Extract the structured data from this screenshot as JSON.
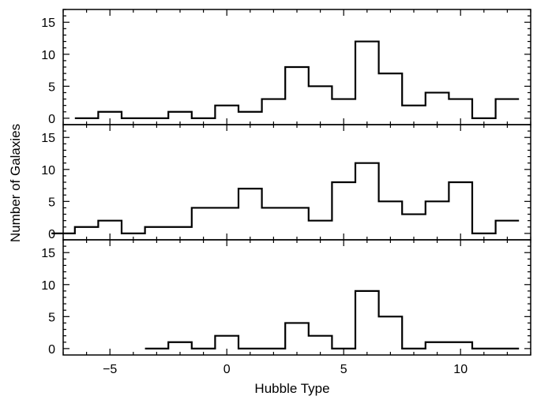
{
  "chart_data": {
    "type": "histogram",
    "xlabel": "Hubble Type",
    "ylabel": "Number of Galaxies",
    "xlim": [
      -7,
      13
    ],
    "ylim": [
      -1,
      17
    ],
    "x_ticks": [
      -5,
      0,
      5,
      10
    ],
    "x_tick_labels": [
      "−5",
      "0",
      "5",
      "10"
    ],
    "y_ticks": [
      0,
      5,
      10,
      15
    ],
    "y_tick_labels": [
      "0",
      "5",
      "10",
      "15"
    ],
    "bin_width": 1,
    "panels": [
      {
        "bin_centers": [
          -6,
          -5,
          -4,
          -3,
          -2,
          -1,
          0,
          1,
          2,
          3,
          4,
          5,
          6,
          7,
          8,
          9,
          10,
          11,
          12
        ],
        "values": [
          0,
          1,
          0,
          0,
          1,
          0,
          2,
          1,
          3,
          8,
          5,
          3,
          12,
          7,
          2,
          4,
          3,
          0,
          3
        ]
      },
      {
        "bin_centers": [
          -7,
          -6,
          -5,
          -4,
          -3,
          -2,
          -1,
          0,
          1,
          2,
          3,
          4,
          5,
          6,
          7,
          8,
          9,
          10,
          11,
          12
        ],
        "values": [
          0,
          1,
          2,
          0,
          1,
          1,
          4,
          4,
          7,
          4,
          4,
          2,
          8,
          11,
          5,
          3,
          5,
          8,
          0,
          2
        ]
      },
      {
        "bin_centers": [
          -3,
          -2,
          -1,
          0,
          1,
          2,
          3,
          4,
          5,
          6,
          7,
          8,
          9,
          10,
          11,
          12
        ],
        "values": [
          0,
          1,
          0,
          2,
          0,
          0,
          4,
          2,
          0,
          9,
          5,
          0,
          1,
          1,
          0,
          0
        ]
      }
    ]
  }
}
